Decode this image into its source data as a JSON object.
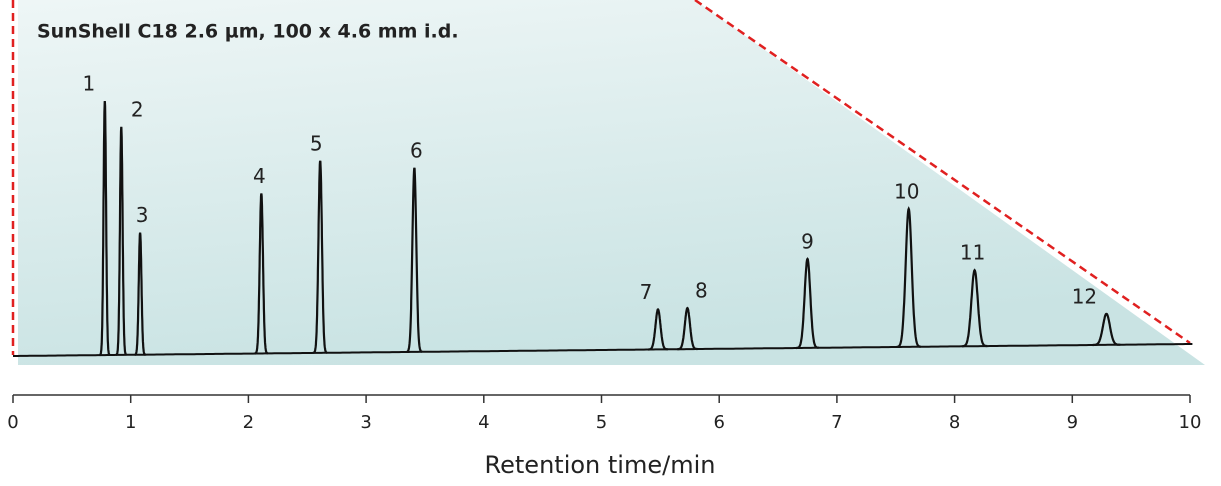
{
  "chart_data": {
    "type": "chromatogram",
    "title": "SunShell C18  2.6 µm, 100 x 4.6 mm i.d.",
    "x_label": "Retention time/min",
    "xlim": [
      0,
      10
    ],
    "xticks": [
      0,
      1,
      2,
      3,
      4,
      5,
      6,
      7,
      8,
      9,
      10
    ],
    "color": "#111111",
    "peaks": [
      {
        "label": "1",
        "time": 0.78,
        "height": 254
      },
      {
        "label": "2",
        "time": 0.92,
        "height": 228
      },
      {
        "label": "3",
        "time": 1.08,
        "height": 122
      },
      {
        "label": "4",
        "time": 2.11,
        "height": 160
      },
      {
        "label": "5",
        "time": 2.61,
        "height": 192
      },
      {
        "label": "6",
        "time": 3.41,
        "height": 184
      },
      {
        "label": "7",
        "time": 5.48,
        "height": 40
      },
      {
        "label": "8",
        "time": 5.73,
        "height": 41
      },
      {
        "label": "9",
        "time": 6.75,
        "height": 89
      },
      {
        "label": "10",
        "time": 7.61,
        "height": 138
      },
      {
        "label": "11",
        "time": 8.17,
        "height": 76
      },
      {
        "label": "12",
        "time": 9.29,
        "height": 31
      }
    ]
  }
}
